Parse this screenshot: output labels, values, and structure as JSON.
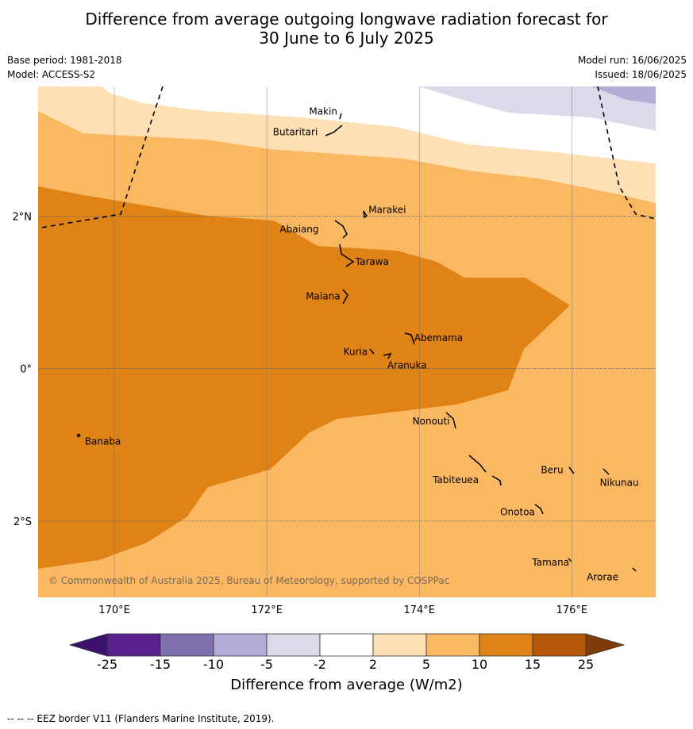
{
  "title": {
    "line1": "Difference from average outgoing longwave radiation forecast for",
    "line2": "30 June to 6 July 2025"
  },
  "meta": {
    "base_period": "Base period: 1981-2018",
    "model": "Model: ACCESS-S2",
    "model_run": "Model run: 16/06/2025",
    "issued": "Issued: 18/06/2025"
  },
  "map": {
    "lon_range": [
      169,
      177.1
    ],
    "lat_range": [
      -3.0,
      3.7
    ],
    "copyright": "© Commonwealth of Australia 2025, Bureau of Meteorology, supported by COSPPac",
    "lon_ticks": [
      {
        "value": 170,
        "label": "170°E"
      },
      {
        "value": 172,
        "label": "172°E"
      },
      {
        "value": 174,
        "label": "174°E"
      },
      {
        "value": 176,
        "label": "176°E"
      }
    ],
    "lat_ticks": [
      {
        "value": 2,
        "label": "2°N"
      },
      {
        "value": 0,
        "label": "0°"
      },
      {
        "value": -2,
        "label": "2°S"
      }
    ],
    "places": [
      {
        "name": "Makin",
        "lon": 172.95,
        "lat": 3.35
      },
      {
        "name": "Butaritari",
        "lon": 172.85,
        "lat": 3.1
      },
      {
        "name": "Marakei",
        "lon": 173.25,
        "lat": 2.0
      },
      {
        "name": "Abaiang",
        "lon": 172.95,
        "lat": 1.85
      },
      {
        "name": "Tarawa",
        "lon": 173.1,
        "lat": 1.4
      },
      {
        "name": "Maiana",
        "lon": 173.0,
        "lat": 0.95
      },
      {
        "name": "Abemama",
        "lon": 173.85,
        "lat": 0.4
      },
      {
        "name": "Kuria",
        "lon": 173.4,
        "lat": 0.22
      },
      {
        "name": "Aranuka",
        "lon": 173.6,
        "lat": 0.17
      },
      {
        "name": "Nonouti",
        "lon": 174.4,
        "lat": -0.65
      },
      {
        "name": "Banaba",
        "lon": 169.55,
        "lat": -0.87
      },
      {
        "name": "Tabiteuea",
        "lon": 174.8,
        "lat": -1.4
      },
      {
        "name": "Beru",
        "lon": 175.98,
        "lat": -1.33
      },
      {
        "name": "Nikunau",
        "lon": 176.45,
        "lat": -1.37
      },
      {
        "name": "Onotoa",
        "lon": 175.55,
        "lat": -1.8
      },
      {
        "name": "Tamana",
        "lon": 175.98,
        "lat": -2.5
      },
      {
        "name": "Arorae",
        "lon": 176.82,
        "lat": -2.65
      }
    ]
  },
  "colorbar": {
    "title": "Difference from average (W/m2)",
    "bins": [
      {
        "label": "-25",
        "color": "#3d0f6e"
      },
      {
        "label": "-15",
        "color": "#58208a"
      },
      {
        "label": "-10",
        "color": "#8070ae"
      },
      {
        "label": "-5",
        "color": "#b3acd4"
      },
      {
        "label": "-2",
        "color": "#dadaeb"
      },
      {
        "label": "2",
        "color": "#ffffff"
      },
      {
        "label": "5",
        "color": "#fde0b4"
      },
      {
        "label": "10",
        "color": "#fbb862"
      },
      {
        "label": "15",
        "color": "#e08316"
      },
      {
        "label": "25",
        "color": "#b35808"
      },
      {
        "label": "",
        "color": "#7f3c08"
      }
    ]
  },
  "footer": "-- -- -- EEZ border V11 (Flanders Marine Institute, 2019)."
}
